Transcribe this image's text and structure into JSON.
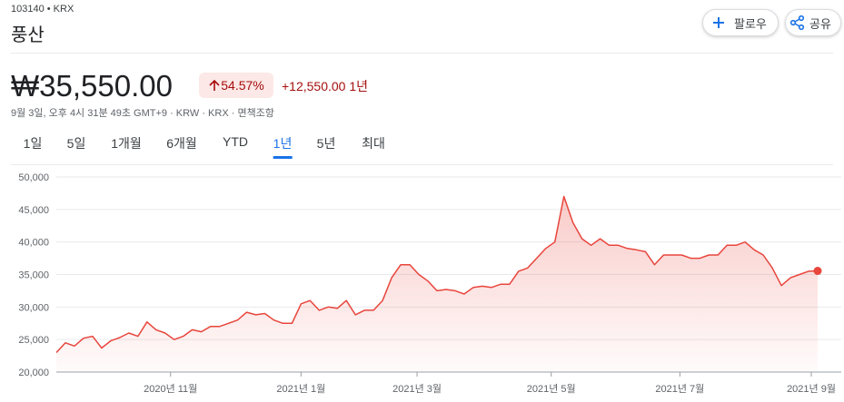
{
  "header": {
    "ticker": "103140 • KRX",
    "name": "풍산",
    "follow": "팔로우",
    "share": "공유",
    "price": "₩35,550.00",
    "change_pct": "54.57%",
    "change": "+12,550.00",
    "period": "1년",
    "subtitle": "9월 3일, 오후 4시 31분 49초 GMT+9 · KRW · KRX · 면책조항"
  },
  "tabs": [
    "1일",
    "5일",
    "1개월",
    "6개월",
    "YTD",
    "1년",
    "5년",
    "최대"
  ],
  "chart_data": {
    "type": "line",
    "color": "#e8453c",
    "grid": true,
    "values": [
      23000,
      24500,
      24000,
      25200,
      25500,
      23700,
      24800,
      25300,
      26000,
      25500,
      27700,
      26500,
      26000,
      25000,
      25500,
      26500,
      26200,
      27000,
      27000,
      27500,
      28000,
      29200,
      28800,
      29000,
      28000,
      27500,
      27500,
      30500,
      31000,
      29500,
      30000,
      29800,
      31000,
      28800,
      29500,
      29500,
      31000,
      34500,
      36500,
      36500,
      35000,
      34000,
      32500,
      32700,
      32500,
      32000,
      33000,
      33200,
      33000,
      33500,
      33500,
      35500,
      36000,
      37500,
      39000,
      40000,
      47000,
      43000,
      40500,
      39500,
      40500,
      39500,
      39500,
      39000,
      38800,
      38500,
      36500,
      38000,
      38000,
      38000,
      37500,
      37500,
      38000,
      38000,
      39500,
      39500,
      40000,
      38800,
      38000,
      36000,
      33300,
      34500,
      35000,
      35500,
      35550
    ],
    "xlim": [
      0,
      84
    ],
    "xticks": [
      {
        "value": 12.6,
        "label": "2020년 11월"
      },
      {
        "value": 27.0,
        "label": "2021년 1월"
      },
      {
        "value": 39.8,
        "label": "2021년 3월"
      },
      {
        "value": 54.6,
        "label": "2021년 5월"
      },
      {
        "value": 68.8,
        "label": "2021년 7월"
      },
      {
        "value": 83.3,
        "label": "2021년 9월"
      }
    ],
    "ylim": [
      20000,
      50000
    ],
    "yticks": [
      {
        "value": 20000,
        "label": "20,000"
      },
      {
        "value": 25000,
        "label": "25,000"
      },
      {
        "value": 30000,
        "label": "30,000"
      },
      {
        "value": 35000,
        "label": "35,000"
      },
      {
        "value": 40000,
        "label": "40,000"
      },
      {
        "value": 45000,
        "label": "45,000"
      },
      {
        "value": 50000,
        "label": "50,000"
      }
    ]
  }
}
